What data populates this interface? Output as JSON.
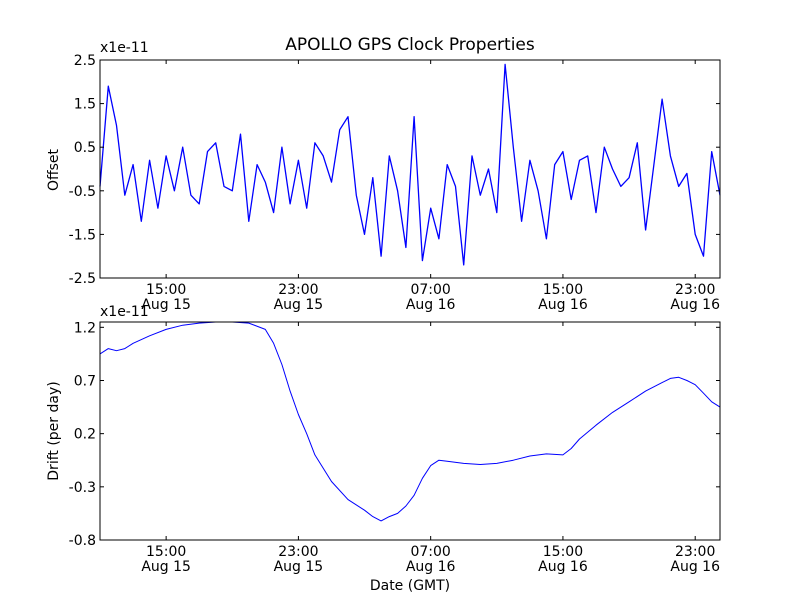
{
  "figure": {
    "title": "APOLLO GPS Clock Properties"
  },
  "chart_data": [
    {
      "type": "line",
      "ylabel": "Offset",
      "y_multiplier": "x1e-11",
      "ylim": [
        -2.5,
        2.5
      ],
      "yticks": [
        {
          "value": -2.5,
          "label": "-2.5"
        },
        {
          "value": -1.5,
          "label": "-1.5"
        },
        {
          "value": -0.5,
          "label": "-0.5"
        },
        {
          "value": 0.5,
          "label": "0.5"
        },
        {
          "value": 1.5,
          "label": "1.5"
        },
        {
          "value": 2.5,
          "label": "2.5"
        }
      ],
      "xlim": [
        "2009-08-15T11:00",
        "2009-08-17T00:30"
      ],
      "xticks": [
        {
          "value": "2009-08-15T15:00",
          "label1": "15:00",
          "label2": "Aug 15"
        },
        {
          "value": "2009-08-15T23:00",
          "label1": "23:00",
          "label2": "Aug 15"
        },
        {
          "value": "2009-08-16T07:00",
          "label1": "07:00",
          "label2": "Aug 16"
        },
        {
          "value": "2009-08-16T15:00",
          "label1": "15:00",
          "label2": "Aug 16"
        },
        {
          "value": "2009-08-16T23:00",
          "label1": "23:00",
          "label2": "Aug 16"
        }
      ],
      "grid": false,
      "line_color": "#0000ff",
      "series": [
        {
          "x": [
            "2009-08-15T11:00",
            "2009-08-15T11:30",
            "2009-08-15T12:00",
            "2009-08-15T12:30",
            "2009-08-15T13:00",
            "2009-08-15T13:30",
            "2009-08-15T14:00",
            "2009-08-15T14:30",
            "2009-08-15T15:00",
            "2009-08-15T15:30",
            "2009-08-15T16:00",
            "2009-08-15T16:30",
            "2009-08-15T17:00",
            "2009-08-15T17:30",
            "2009-08-15T18:00",
            "2009-08-15T18:30",
            "2009-08-15T19:00",
            "2009-08-15T19:30",
            "2009-08-15T20:00",
            "2009-08-15T20:30",
            "2009-08-15T21:00",
            "2009-08-15T21:30",
            "2009-08-15T22:00",
            "2009-08-15T22:30",
            "2009-08-15T23:00",
            "2009-08-15T23:30",
            "2009-08-16T00:00",
            "2009-08-16T00:30",
            "2009-08-16T01:00",
            "2009-08-16T01:30",
            "2009-08-16T02:00",
            "2009-08-16T02:30",
            "2009-08-16T03:00",
            "2009-08-16T03:30",
            "2009-08-16T04:00",
            "2009-08-16T04:30",
            "2009-08-16T05:00",
            "2009-08-16T05:30",
            "2009-08-16T06:00",
            "2009-08-16T06:30",
            "2009-08-16T07:00",
            "2009-08-16T07:30",
            "2009-08-16T08:00",
            "2009-08-16T08:30",
            "2009-08-16T09:00",
            "2009-08-16T09:30",
            "2009-08-16T10:00",
            "2009-08-16T10:30",
            "2009-08-16T11:00",
            "2009-08-16T11:30",
            "2009-08-16T12:00",
            "2009-08-16T12:30",
            "2009-08-16T13:00",
            "2009-08-16T13:30",
            "2009-08-16T14:00",
            "2009-08-16T14:30",
            "2009-08-16T15:00",
            "2009-08-16T15:30",
            "2009-08-16T16:00",
            "2009-08-16T16:30",
            "2009-08-16T17:00",
            "2009-08-16T17:30",
            "2009-08-16T18:00",
            "2009-08-16T18:30",
            "2009-08-16T19:00",
            "2009-08-16T19:30",
            "2009-08-16T20:00",
            "2009-08-16T20:30",
            "2009-08-16T21:00",
            "2009-08-16T21:30",
            "2009-08-16T22:00",
            "2009-08-16T22:30",
            "2009-08-16T23:00",
            "2009-08-16T23:30",
            "2009-08-17T00:00",
            "2009-08-17T00:30"
          ],
          "y": [
            -0.4,
            1.9,
            1.0,
            -0.6,
            0.1,
            -1.2,
            0.2,
            -0.9,
            0.3,
            -0.5,
            0.5,
            -0.6,
            -0.8,
            0.4,
            0.6,
            -0.4,
            -0.5,
            0.8,
            -1.2,
            0.1,
            -0.3,
            -1.0,
            0.5,
            -0.8,
            0.2,
            -0.9,
            0.6,
            0.3,
            -0.3,
            0.9,
            1.2,
            -0.6,
            -1.5,
            -0.2,
            -2.0,
            0.3,
            -0.5,
            -1.8,
            1.2,
            -2.1,
            -0.9,
            -1.6,
            0.1,
            -0.4,
            -2.2,
            0.3,
            -0.6,
            0.0,
            -1.0,
            2.4,
            0.5,
            -1.2,
            0.2,
            -0.5,
            -1.6,
            0.1,
            0.4,
            -0.7,
            0.2,
            0.3,
            -1.0,
            0.5,
            0.0,
            -0.4,
            -0.2,
            0.6,
            -1.4,
            0.1,
            1.6,
            0.3,
            -0.4,
            -0.1,
            -1.5,
            -2.0,
            0.4,
            -0.6
          ]
        }
      ]
    },
    {
      "type": "line",
      "ylabel": "Drift (per day)",
      "xlabel": "Date (GMT)",
      "y_multiplier": "x1e-11",
      "ylim": [
        -0.8,
        1.25
      ],
      "yticks": [
        {
          "value": -0.8,
          "label": "-0.8"
        },
        {
          "value": -0.3,
          "label": "-0.3"
        },
        {
          "value": 0.2,
          "label": "0.2"
        },
        {
          "value": 0.7,
          "label": "0.7"
        },
        {
          "value": 1.2,
          "label": "1.2"
        }
      ],
      "xlim": [
        "2009-08-15T11:00",
        "2009-08-17T00:30"
      ],
      "xticks": [
        {
          "value": "2009-08-15T15:00",
          "label1": "15:00",
          "label2": "Aug 15"
        },
        {
          "value": "2009-08-15T23:00",
          "label1": "23:00",
          "label2": "Aug 15"
        },
        {
          "value": "2009-08-16T07:00",
          "label1": "07:00",
          "label2": "Aug 16"
        },
        {
          "value": "2009-08-16T15:00",
          "label1": "15:00",
          "label2": "Aug 16"
        },
        {
          "value": "2009-08-16T23:00",
          "label1": "23:00",
          "label2": "Aug 16"
        }
      ],
      "grid": false,
      "line_color": "#0000ff",
      "series": [
        {
          "x": [
            "2009-08-15T11:00",
            "2009-08-15T11:30",
            "2009-08-15T12:00",
            "2009-08-15T12:30",
            "2009-08-15T13:00",
            "2009-08-15T14:00",
            "2009-08-15T15:00",
            "2009-08-15T16:00",
            "2009-08-15T17:00",
            "2009-08-15T18:00",
            "2009-08-15T19:00",
            "2009-08-15T20:00",
            "2009-08-15T21:00",
            "2009-08-15T21:30",
            "2009-08-15T22:00",
            "2009-08-15T22:30",
            "2009-08-15T23:00",
            "2009-08-15T23:30",
            "2009-08-16T00:00",
            "2009-08-16T01:00",
            "2009-08-16T02:00",
            "2009-08-16T03:00",
            "2009-08-16T03:30",
            "2009-08-16T04:00",
            "2009-08-16T04:30",
            "2009-08-16T05:00",
            "2009-08-16T05:30",
            "2009-08-16T06:00",
            "2009-08-16T06:30",
            "2009-08-16T07:00",
            "2009-08-16T07:30",
            "2009-08-16T08:00",
            "2009-08-16T09:00",
            "2009-08-16T10:00",
            "2009-08-16T11:00",
            "2009-08-16T12:00",
            "2009-08-16T13:00",
            "2009-08-16T14:00",
            "2009-08-16T15:00",
            "2009-08-16T15:30",
            "2009-08-16T16:00",
            "2009-08-16T17:00",
            "2009-08-16T18:00",
            "2009-08-16T19:00",
            "2009-08-16T20:00",
            "2009-08-16T21:00",
            "2009-08-16T21:30",
            "2009-08-16T22:00",
            "2009-08-16T22:30",
            "2009-08-16T23:00",
            "2009-08-16T23:30",
            "2009-08-17T00:00",
            "2009-08-17T00:30"
          ],
          "y": [
            0.95,
            1.0,
            0.98,
            1.0,
            1.05,
            1.12,
            1.18,
            1.22,
            1.24,
            1.25,
            1.25,
            1.24,
            1.18,
            1.05,
            0.85,
            0.6,
            0.38,
            0.2,
            0.0,
            -0.25,
            -0.42,
            -0.52,
            -0.58,
            -0.62,
            -0.58,
            -0.55,
            -0.48,
            -0.38,
            -0.22,
            -0.1,
            -0.05,
            -0.06,
            -0.08,
            -0.09,
            -0.08,
            -0.05,
            -0.01,
            0.01,
            0.0,
            0.06,
            0.15,
            0.28,
            0.4,
            0.5,
            0.6,
            0.68,
            0.72,
            0.73,
            0.7,
            0.66,
            0.58,
            0.5,
            0.45
          ]
        }
      ]
    }
  ]
}
